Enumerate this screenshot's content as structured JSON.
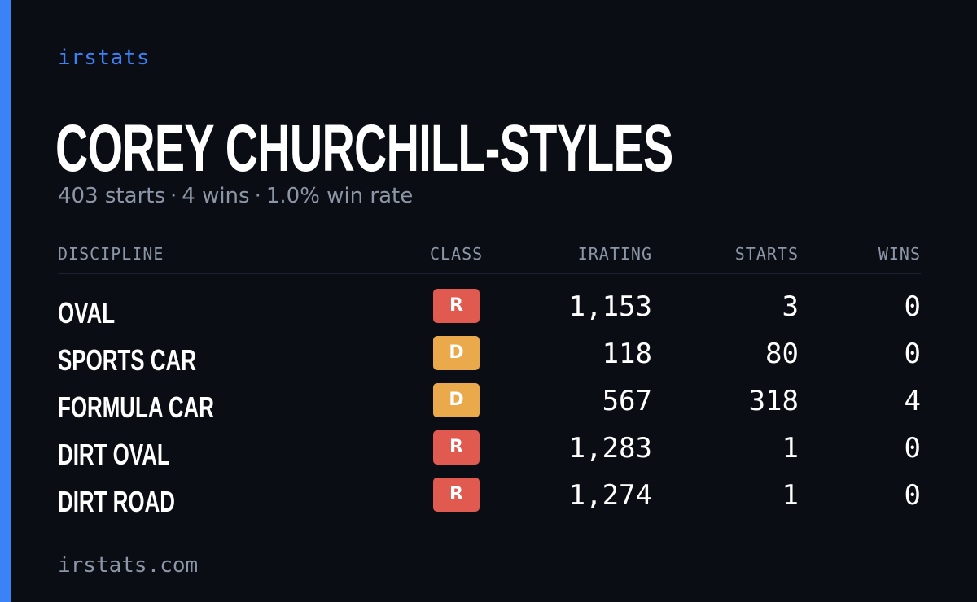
{
  "brand": "irstats",
  "driver": {
    "name": "COREY CHURCHILL-STYLES",
    "starts_text": "403 starts",
    "wins_text": "4 wins",
    "win_rate_text": "1.0% win rate",
    "separator": "·"
  },
  "table": {
    "headers": {
      "discipline": "DISCIPLINE",
      "class": "CLASS",
      "irating": "IRATING",
      "starts": "STARTS",
      "wins": "WINS"
    },
    "rows": [
      {
        "discipline": "OVAL",
        "class": "R",
        "irating": "1,153",
        "starts": "3",
        "wins": "0"
      },
      {
        "discipline": "SPORTS CAR",
        "class": "D",
        "irating": "118",
        "starts": "80",
        "wins": "0"
      },
      {
        "discipline": "FORMULA CAR",
        "class": "D",
        "irating": "567",
        "starts": "318",
        "wins": "4"
      },
      {
        "discipline": "DIRT OVAL",
        "class": "R",
        "irating": "1,283",
        "starts": "1",
        "wins": "0"
      },
      {
        "discipline": "DIRT ROAD",
        "class": "R",
        "irating": "1,274",
        "starts": "1",
        "wins": "0"
      }
    ]
  },
  "class_colors": {
    "R": "#e05a4f",
    "D": "#eaaa4c"
  },
  "accent_color": "#3b82f6",
  "footer": "irstats.com"
}
